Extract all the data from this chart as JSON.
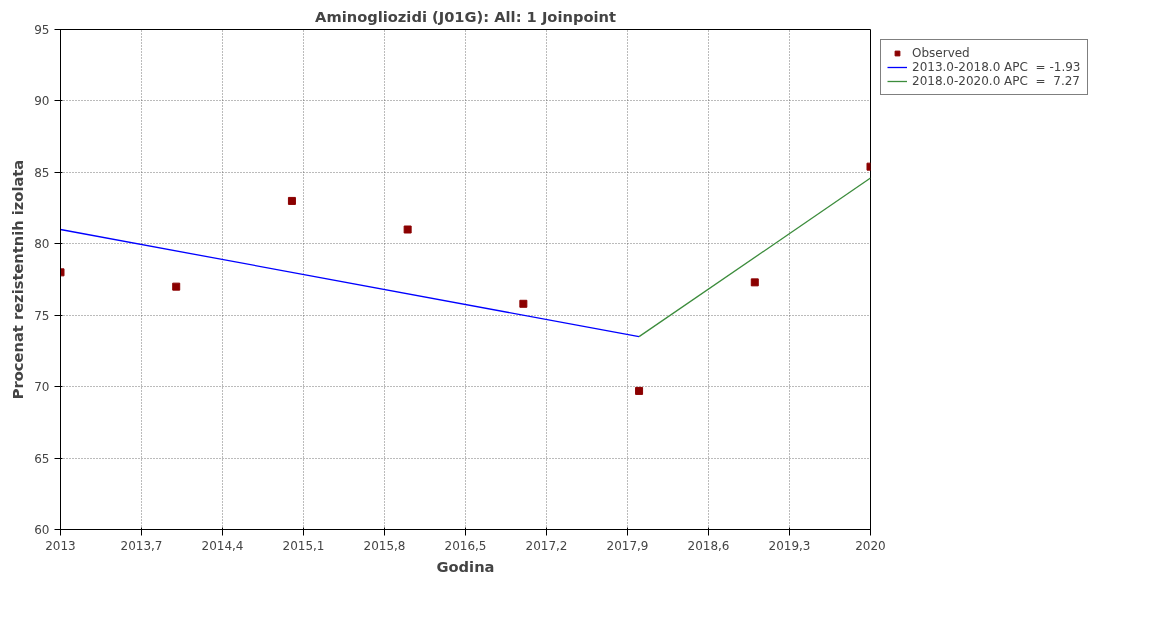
{
  "chart_data": {
    "type": "scatter",
    "title": "Aminogliozidi (J01G): All: 1 Joinpoint",
    "xlabel": "Godina",
    "ylabel": "Procenat rezistentnih izolata",
    "xlim": [
      2013,
      2020
    ],
    "ylim": [
      60,
      95
    ],
    "xticks": [
      2013,
      {
        "value": 2013.7,
        "label": "2013,7"
      },
      {
        "value": 2014.4,
        "label": "2014,4"
      },
      {
        "value": 2015.1,
        "label": "2015,1"
      },
      {
        "value": 2015.8,
        "label": "2015,8"
      },
      {
        "value": 2016.5,
        "label": "2016,5"
      },
      {
        "value": 2017.2,
        "label": "2017,2"
      },
      {
        "value": 2017.9,
        "label": "2017,9"
      },
      {
        "value": 2018.6,
        "label": "2018,6"
      },
      {
        "value": 2019.3,
        "label": "2019,3"
      },
      2020
    ],
    "yticks": [
      60,
      65,
      70,
      75,
      80,
      85,
      90,
      95
    ],
    "grid": true,
    "legend": "top right",
    "series": [
      {
        "name": "Observed",
        "marker": "square",
        "color": "#8b0000",
        "x": [
          2013,
          2014,
          2015,
          2016,
          2017,
          2018,
          2019,
          2020
        ],
        "values": [
          78.0,
          77.0,
          83.0,
          81.0,
          75.8,
          69.7,
          77.3,
          85.4
        ]
      },
      {
        "name": "2013.0-2018.0 APC  = -1.93",
        "type": "line",
        "color": "#0000ff",
        "x": [
          2013,
          2018
        ],
        "values": [
          81.0,
          73.5
        ]
      },
      {
        "name": "2018.0-2020.0 APC  =  7.27",
        "type": "line",
        "color": "#3c8c3c",
        "x": [
          2018,
          2020
        ],
        "values": [
          73.5,
          84.6
        ]
      }
    ]
  }
}
